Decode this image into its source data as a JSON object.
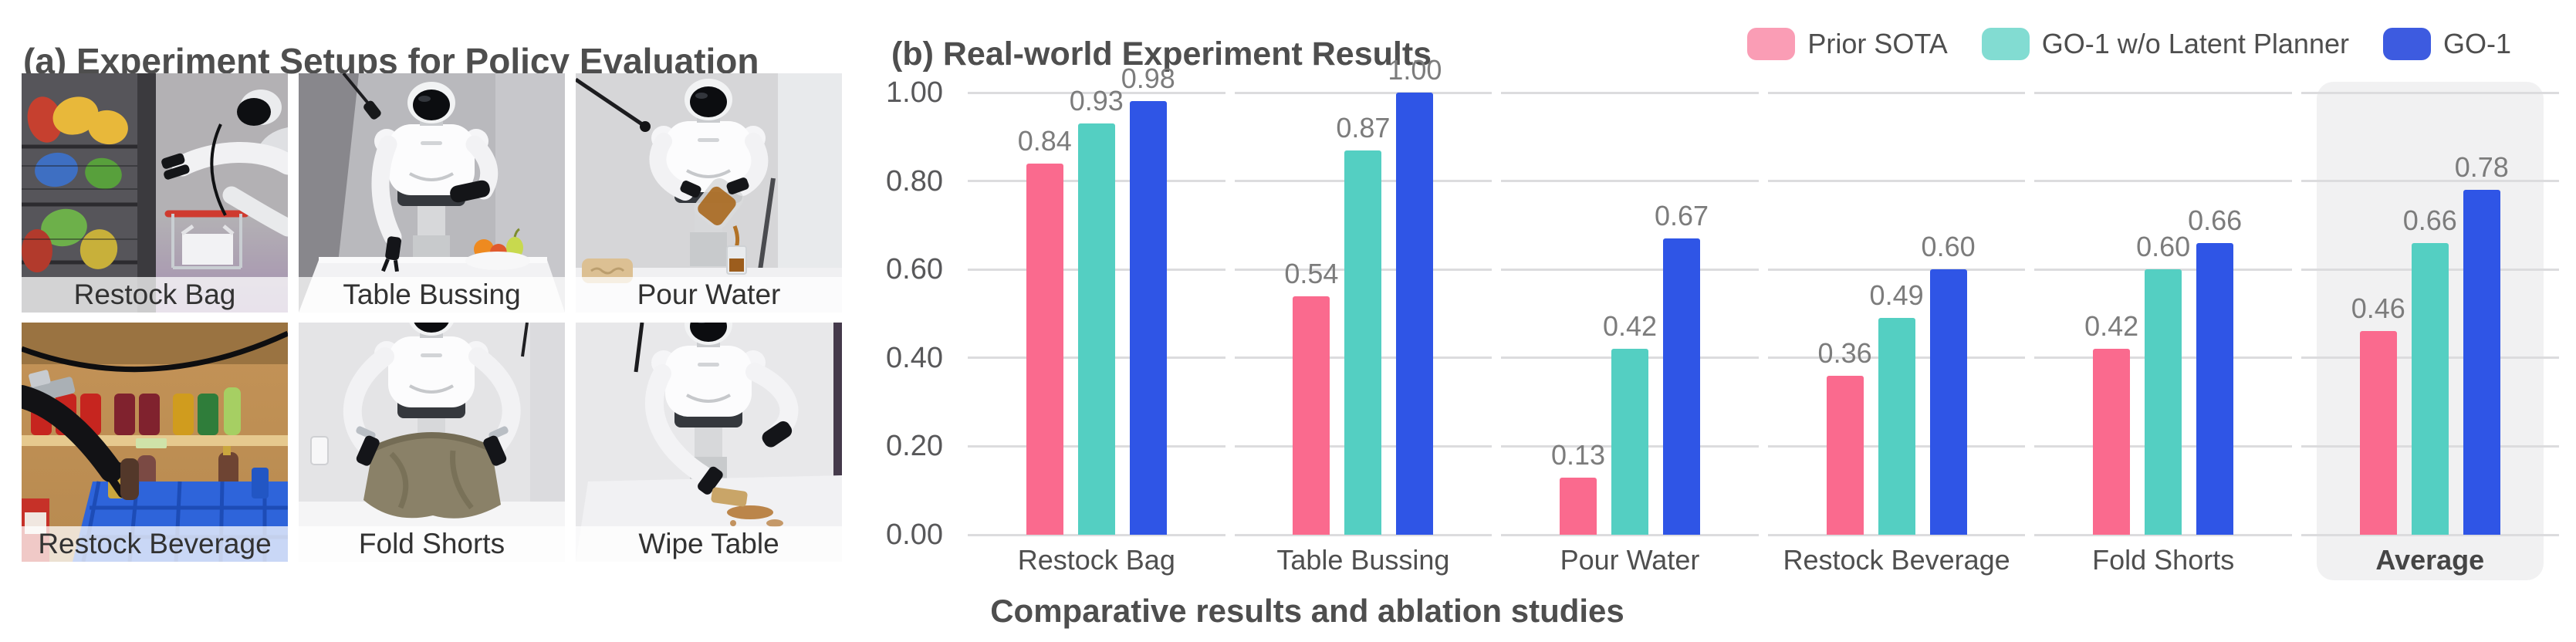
{
  "figure": {
    "background": "#ffffff"
  },
  "panel_a": {
    "title": "(a) Experiment Setups for Policy Evaluation",
    "setups": [
      "Restock Bag",
      "Table Bussing",
      "Pour Water",
      "Restock Beverage",
      "Fold Shorts",
      "Wipe Table"
    ]
  },
  "panel_b": {
    "title": "(b) Real-world Experiment Results",
    "caption": "Comparative results and ablation studies"
  },
  "chart_data": {
    "type": "bar",
    "title": "(b) Real-world Experiment Results",
    "categories": [
      "Restock Bag",
      "Table Bussing",
      "Pour Water",
      "Restock Beverage",
      "Fold Shorts",
      "Average"
    ],
    "series": [
      {
        "name": "Prior SOTA",
        "color": "#FA6A8E",
        "legend_color": "#FA9DB5",
        "values": [
          0.84,
          0.54,
          0.13,
          0.36,
          0.42,
          0.46
        ]
      },
      {
        "name": "GO-1 w/o Latent Planner",
        "color": "#54CFC2",
        "legend_color": "#82DCD2",
        "values": [
          0.93,
          0.87,
          0.42,
          0.49,
          0.6,
          0.66
        ]
      },
      {
        "name": "GO-1",
        "color": "#2F55E6",
        "legend_color": "#3D5BE0",
        "values": [
          0.98,
          1.0,
          0.67,
          0.6,
          0.66,
          0.78
        ]
      }
    ],
    "ylim": [
      0,
      1
    ],
    "yticks": [
      "0.00",
      "0.20",
      "0.40",
      "0.60",
      "0.80",
      "1.00"
    ],
    "grid": true,
    "gridline_gap_between_groups": true,
    "legend_position": "top-right",
    "highlight_category": "Average",
    "highlight_bg": "#F1F1F2",
    "grid_color": "#DCDCDE",
    "value_label_color": "#7C7C7C",
    "axis_label_color": "#4F4F4F",
    "xlabel": "Comparative results and ablation studies",
    "ylabel": ""
  }
}
